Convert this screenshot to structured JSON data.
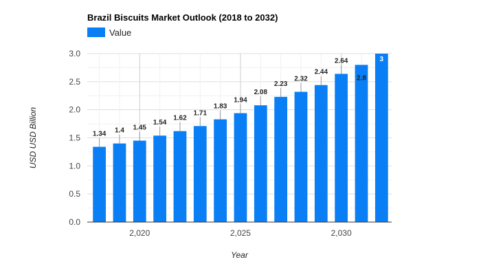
{
  "chart_data": {
    "type": "bar",
    "title": "Brazil Biscuits Market Outlook (2018 to 2032)",
    "xlabel": "Year",
    "ylabel": "USD USD Billion",
    "legend": {
      "position": "top-left",
      "entries": [
        "Value"
      ]
    },
    "grid": true,
    "color": "#0a7ff5",
    "x": [
      2018,
      2019,
      2020,
      2021,
      2022,
      2023,
      2024,
      2025,
      2026,
      2027,
      2028,
      2029,
      2030,
      2031,
      2032
    ],
    "series": [
      {
        "name": "Value",
        "values": [
          1.34,
          1.4,
          1.45,
          1.54,
          1.62,
          1.71,
          1.83,
          1.94,
          2.08,
          2.23,
          2.32,
          2.44,
          2.64,
          2.8,
          3
        ]
      }
    ],
    "data_labels": [
      "1.34",
      "1.4",
      "1.45",
      "1.54",
      "1.62",
      "1.71",
      "1.83",
      "1.94",
      "2.08",
      "2.23",
      "2.32",
      "2.44",
      "2.64",
      "2.8",
      "3"
    ],
    "ylim": [
      0,
      3
    ],
    "yticks": [
      "0.0",
      "0.5",
      "1.0",
      "1.5",
      "2.0",
      "2.5",
      "3.0"
    ],
    "xlim": [
      2017.4,
      2032.5
    ],
    "xticks": [
      2020,
      2025,
      2030
    ],
    "xtick_labels": [
      "2,020",
      "2,025",
      "2,030"
    ]
  }
}
